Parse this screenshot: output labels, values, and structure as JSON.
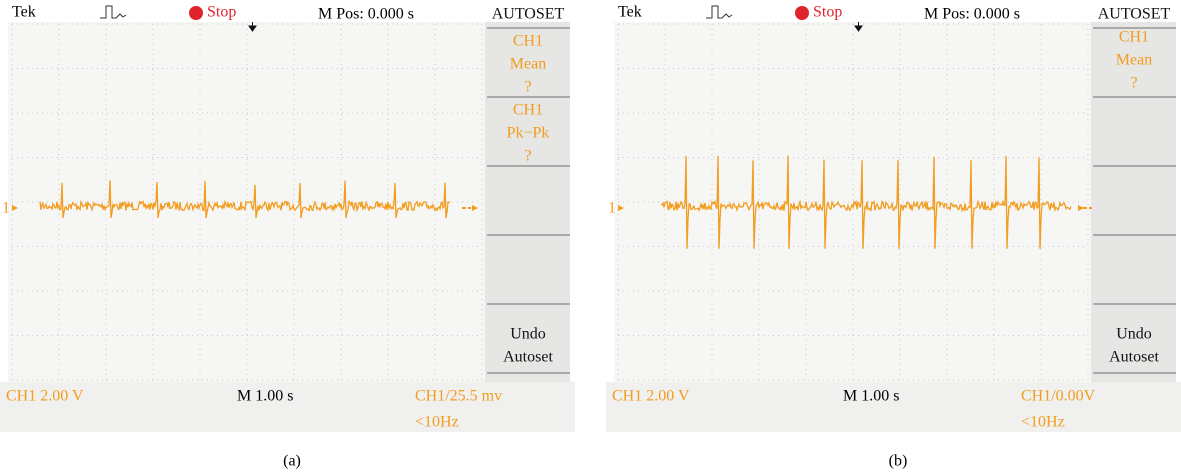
{
  "panels": [
    {
      "header": {
        "brand": "Tek",
        "status": "Stop",
        "position": "M Pos: 0.000 s"
      },
      "channel_marker": "1",
      "menu": [
        [
          "AUTOSET"
        ],
        [
          "CH1",
          "Mean",
          "?"
        ],
        [
          "CH1",
          "Pk−Pk",
          "?"
        ],
        [
          "Undo",
          "Autoset"
        ]
      ],
      "footer": {
        "scale": "CH1 2.00 V",
        "timebase": "M 1.00 s",
        "trigger": "CH1/25.5 mv",
        "frequency": "<10Hz"
      },
      "caption": "(a)"
    },
    {
      "header": {
        "brand": "Tek",
        "status": "Stop",
        "position": "M Pos: 0.000 s"
      },
      "channel_marker": "1",
      "menu": [
        [
          "AUTOSET"
        ],
        [
          "CH1",
          "Mean",
          "?"
        ],
        [
          "Undo",
          "Autoset"
        ]
      ],
      "footer": {
        "scale": "CH1 2.00 V",
        "timebase": "M 1.00 s",
        "trigger": "CH1/0.00V",
        "frequency": "<10Hz"
      },
      "caption": "(b)"
    }
  ]
}
